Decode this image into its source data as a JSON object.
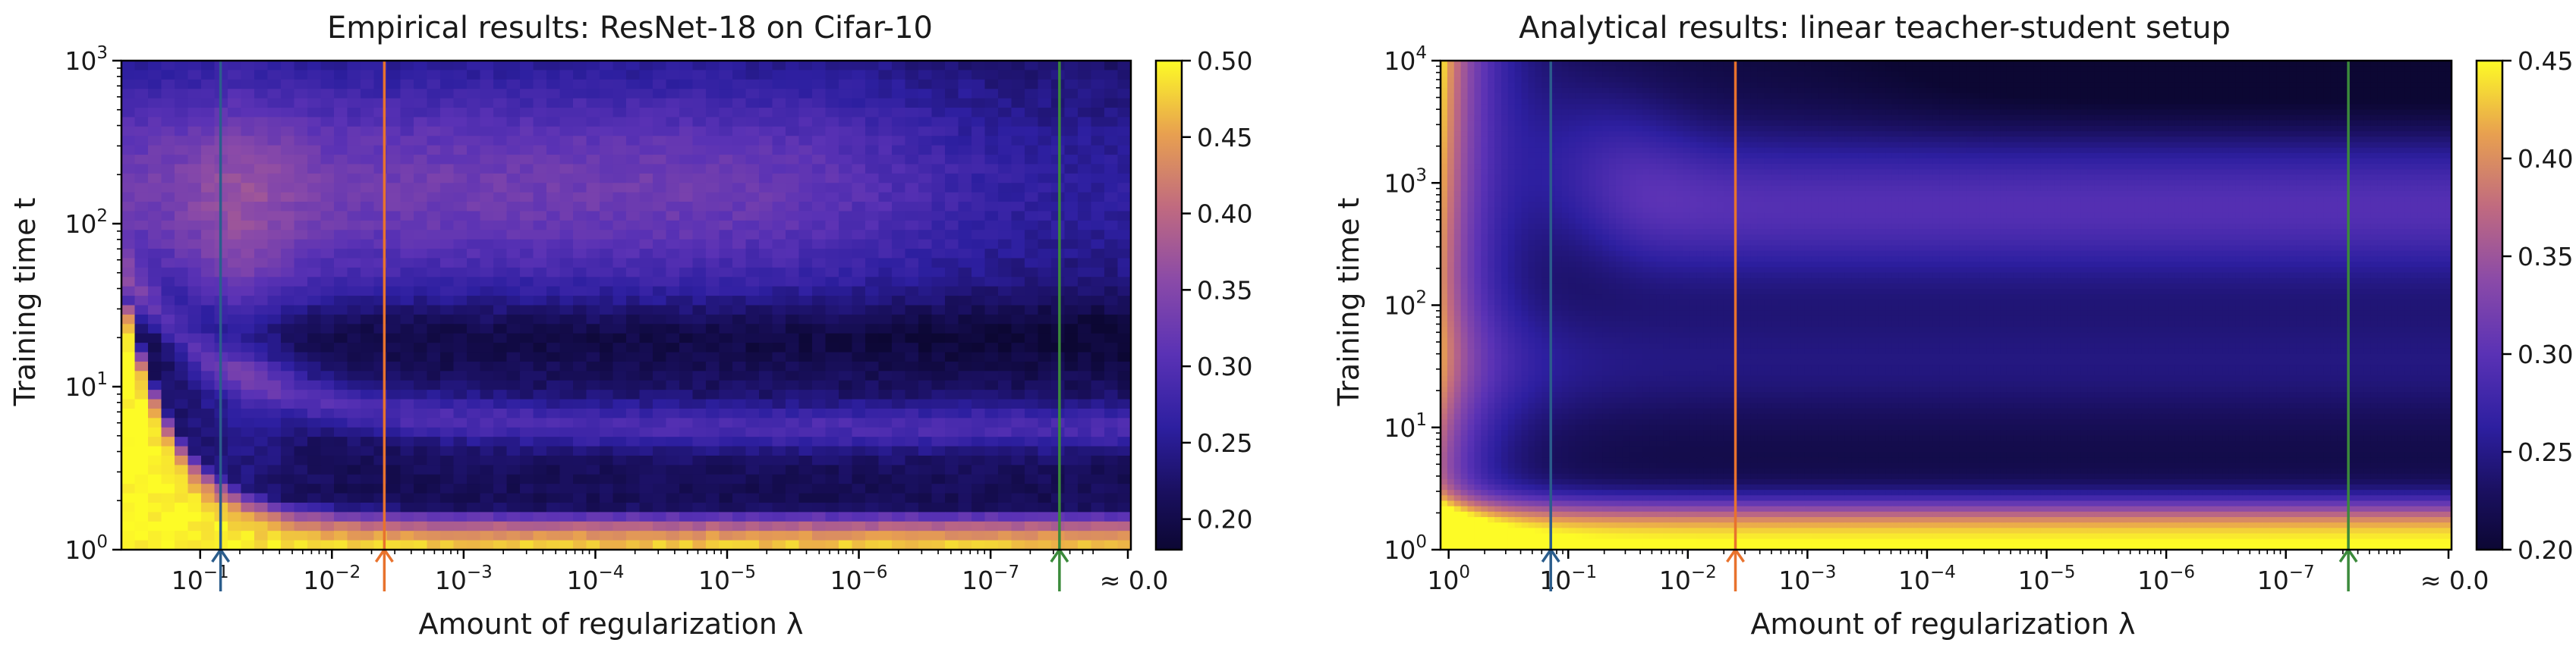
{
  "palette": {
    "stops": [
      [
        0.0,
        "#0c0733"
      ],
      [
        0.12,
        "#1a1060"
      ],
      [
        0.25,
        "#2d1fa0"
      ],
      [
        0.4,
        "#5a32b5"
      ],
      [
        0.55,
        "#8a4aa8"
      ],
      [
        0.7,
        "#c06a80"
      ],
      [
        0.85,
        "#e8a050"
      ],
      [
        1.0,
        "#fdfb26"
      ]
    ]
  },
  "chart_data": [
    {
      "type": "heatmap",
      "title": "Empirical results: ResNet-18 on Cifar-10",
      "xlabel": "Amount of regularization λ",
      "ylabel": "Training time t",
      "x_scale": "log-reversed",
      "x_tick_labels": [
        {
          "base": "10",
          "exp": "−1",
          "value": 0.1
        },
        {
          "base": "10",
          "exp": "−2",
          "value": 0.01
        },
        {
          "base": "10",
          "exp": "−3",
          "value": 0.001
        },
        {
          "base": "10",
          "exp": "−4",
          "value": 0.0001
        },
        {
          "base": "10",
          "exp": "−5",
          "value": 1e-05
        },
        {
          "base": "10",
          "exp": "−6",
          "value": 1e-06
        },
        {
          "base": "10",
          "exp": "−7",
          "value": 1e-07
        }
      ],
      "x_end_label": "≈ 0.0",
      "y_scale": "log",
      "ylim": [
        1,
        1000
      ],
      "y_tick_labels": [
        {
          "base": "10",
          "exp": "0",
          "value": 1
        },
        {
          "base": "10",
          "exp": "1",
          "value": 10
        },
        {
          "base": "10",
          "exp": "2",
          "value": 100
        },
        {
          "base": "10",
          "exp": "3",
          "value": 1000
        }
      ],
      "colorbar": {
        "min": 0.18,
        "max": 0.5,
        "ticks": [
          "0.20",
          "0.25",
          "0.30",
          "0.35",
          "0.40",
          "0.45",
          "0.50"
        ]
      },
      "markers": [
        {
          "color": "#2b5d8c",
          "lambda": 0.07
        },
        {
          "color": "#e8722d",
          "lambda": 0.004
        },
        {
          "color": "#3b8a3b",
          "lambda": 3e-08
        }
      ],
      "grid": {
        "nx": 76,
        "ny": 52,
        "pixelated": true,
        "noise": 0.012
      }
    },
    {
      "type": "heatmap",
      "title": "Analytical results: linear teacher-student setup",
      "xlabel": "Amount of regularization λ",
      "ylabel": "Training time t",
      "x_scale": "log-reversed",
      "x_tick_labels": [
        {
          "base": "10",
          "exp": "0",
          "value": 1
        },
        {
          "base": "10",
          "exp": "−1",
          "value": 0.1
        },
        {
          "base": "10",
          "exp": "−2",
          "value": 0.01
        },
        {
          "base": "10",
          "exp": "−3",
          "value": 0.001
        },
        {
          "base": "10",
          "exp": "−4",
          "value": 0.0001
        },
        {
          "base": "10",
          "exp": "−5",
          "value": 1e-05
        },
        {
          "base": "10",
          "exp": "−6",
          "value": 1e-06
        },
        {
          "base": "10",
          "exp": "−7",
          "value": 1e-07
        }
      ],
      "x_end_label": "≈ 0.0",
      "y_scale": "log",
      "ylim": [
        1,
        10000
      ],
      "y_tick_labels": [
        {
          "base": "10",
          "exp": "0",
          "value": 1
        },
        {
          "base": "10",
          "exp": "1",
          "value": 10
        },
        {
          "base": "10",
          "exp": "2",
          "value": 100
        },
        {
          "base": "10",
          "exp": "3",
          "value": 1000
        },
        {
          "base": "10",
          "exp": "4",
          "value": 10000
        }
      ],
      "colorbar": {
        "min": 0.2,
        "max": 0.45,
        "ticks": [
          "0.20",
          "0.25",
          "0.30",
          "0.35",
          "0.40",
          "0.45"
        ]
      },
      "markers": [
        {
          "color": "#2b5d8c",
          "lambda": 0.14
        },
        {
          "color": "#e8722d",
          "lambda": 0.004
        },
        {
          "color": "#3b8a3b",
          "lambda": 3e-08
        }
      ],
      "grid": {
        "nx": 150,
        "ny": 90,
        "pixelated": false,
        "noise": 0
      }
    }
  ]
}
